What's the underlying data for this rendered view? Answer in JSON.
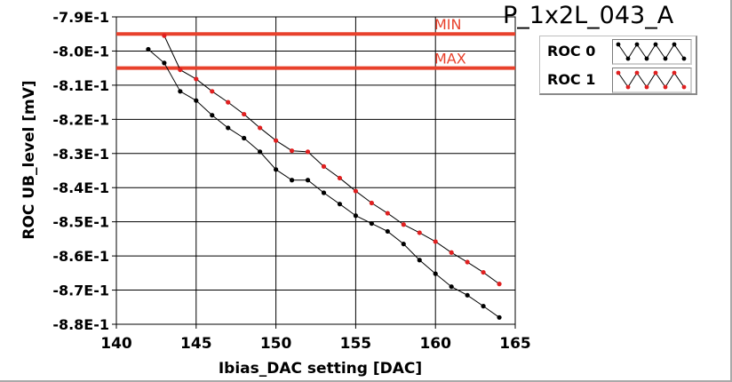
{
  "chart_data": {
    "type": "line",
    "title": "P_1x2L_043_A",
    "xlabel": "Ibias_DAC setting [DAC]",
    "ylabel": "ROC UB_level [mV]",
    "xlim": [
      140,
      165
    ],
    "ylim": [
      -0.88,
      -0.79
    ],
    "x_ticks": [
      140,
      145,
      150,
      155,
      160,
      165
    ],
    "x_tick_labels": [
      "140",
      "145",
      "150",
      "155",
      "160",
      "165"
    ],
    "y_ticks": [
      -0.79,
      -0.8,
      -0.81,
      -0.82,
      -0.83,
      -0.84,
      -0.85,
      -0.86,
      -0.87,
      -0.88
    ],
    "y_tick_labels": [
      "-7.9E-1",
      "-8.0E-1",
      "-8.1E-1",
      "-8.2E-1",
      "-8.3E-1",
      "-8.4E-1",
      "-8.5E-1",
      "-8.6E-1",
      "-8.7E-1",
      "-8.8E-1"
    ],
    "grid": true,
    "limits": [
      {
        "label": "MIN",
        "value": -0.795,
        "color": "#e8412c"
      },
      {
        "label": "MAX",
        "value": -0.805,
        "color": "#e8412c"
      }
    ],
    "series": [
      {
        "name": "ROC 0",
        "color": "#000000",
        "x": [
          142,
          143,
          144,
          145,
          146,
          147,
          148,
          149,
          150,
          151,
          152,
          153,
          154,
          155,
          156,
          157,
          158,
          159,
          160,
          161,
          162,
          163,
          164
        ],
        "values": [
          -0.7995,
          -0.8035,
          -0.8118,
          -0.8145,
          -0.8188,
          -0.8225,
          -0.8255,
          -0.8295,
          -0.8347,
          -0.8378,
          -0.8378,
          -0.8415,
          -0.8448,
          -0.8482,
          -0.8505,
          -0.8528,
          -0.8565,
          -0.8612,
          -0.8652,
          -0.869,
          -0.8715,
          -0.8747,
          -0.878
        ]
      },
      {
        "name": "ROC 1",
        "color": "#e02020",
        "x": [
          143,
          144,
          145,
          146,
          147,
          148,
          149,
          150,
          151,
          152,
          153,
          154,
          155,
          156,
          157,
          158,
          159,
          160,
          161,
          162,
          163,
          164
        ],
        "values": [
          -0.7955,
          -0.8055,
          -0.8082,
          -0.8118,
          -0.815,
          -0.8185,
          -0.8225,
          -0.8262,
          -0.8292,
          -0.8295,
          -0.8338,
          -0.8372,
          -0.841,
          -0.8445,
          -0.8475,
          -0.8508,
          -0.8532,
          -0.8558,
          -0.859,
          -0.8618,
          -0.8648,
          -0.8682
        ]
      }
    ],
    "legend_position": "top-right",
    "background": "#ffffff",
    "grid_color": "#000000",
    "limit_color": "#e8412c"
  }
}
